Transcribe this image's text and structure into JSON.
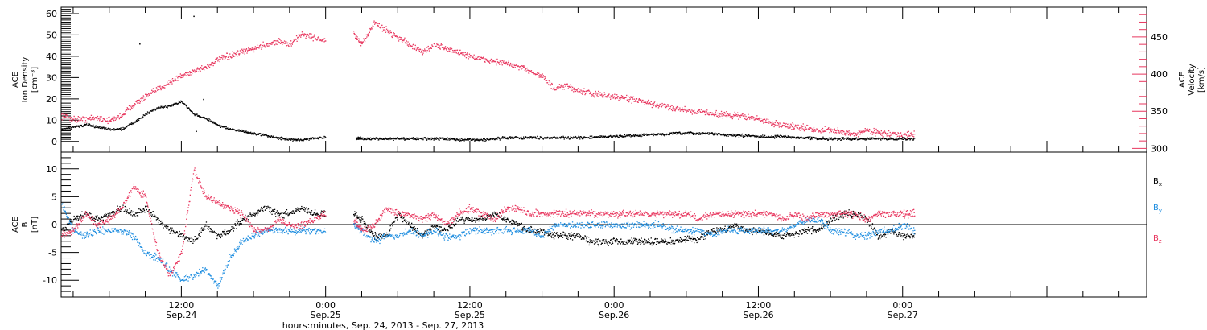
{
  "colors": {
    "black": "#000000",
    "pink": "#e8375f",
    "blue": "#1f8ee0",
    "axis": "#000000"
  },
  "xaxis": {
    "label": "hours:minutes, Sep. 24, 2013 - Sep. 27, 2013",
    "range_hours": [
      2,
      92.3
    ],
    "ticks": [
      {
        "hour": 12,
        "time": "12:00",
        "date": "Sep.24"
      },
      {
        "hour": 24,
        "time": "0:00",
        "date": "Sep.25"
      },
      {
        "hour": 36,
        "time": "12:00",
        "date": "Sep.25"
      },
      {
        "hour": 48,
        "time": "0:00",
        "date": "Sep.26"
      },
      {
        "hour": 60,
        "time": "12:00",
        "date": "Sep.26"
      },
      {
        "hour": 72,
        "time": "0:00",
        "date": "Sep.27"
      }
    ]
  },
  "chart_data": [
    {
      "type": "scatter",
      "panel": "top",
      "ylabel_left": [
        "ACE",
        "Ion Density",
        "[cm⁻³]"
      ],
      "ylabel_right": [
        "ACE",
        "Velocity",
        "[km/s]"
      ],
      "ylim_left": [
        -5,
        63
      ],
      "ylim_right": [
        295,
        490
      ],
      "yticks_left": [
        0,
        10,
        20,
        30,
        40,
        50,
        60
      ],
      "yticks_right": [
        300,
        350,
        400,
        450
      ],
      "series": [
        {
          "axis": "left",
          "color": "black",
          "x": [
            2,
            3,
            4,
            5,
            6,
            7,
            8,
            9,
            10,
            11,
            12,
            13,
            14,
            15,
            16,
            17,
            18,
            19,
            20,
            21,
            22,
            23,
            24,
            26.5,
            27,
            28,
            29,
            30,
            31,
            32,
            33,
            34,
            35,
            36,
            37,
            38,
            39,
            40,
            41,
            42,
            43,
            44,
            45,
            46,
            47,
            48,
            49,
            50,
            51,
            52,
            53,
            54,
            55,
            56,
            57,
            58,
            59,
            60,
            61,
            62,
            63,
            64,
            65,
            66,
            67,
            68,
            69,
            70,
            71,
            72,
            73
          ],
          "y": [
            6,
            7,
            8,
            7,
            6,
            6,
            9,
            13,
            16,
            17,
            19,
            13,
            11,
            8,
            6,
            5,
            4,
            3,
            2,
            1,
            1,
            2,
            2,
            1.5,
            1.5,
            1.5,
            1.5,
            1.5,
            1.5,
            1.5,
            1.5,
            1.5,
            1,
            1,
            1,
            1.5,
            2,
            2,
            2,
            2,
            2,
            2,
            2,
            2,
            2.5,
            2.5,
            3,
            3,
            3.5,
            3.5,
            4,
            4,
            4,
            4,
            3.5,
            3,
            3,
            2.5,
            2.5,
            2.5,
            2,
            2,
            1.5,
            1.5,
            1.5,
            1.5,
            1.5,
            1.5,
            1.5,
            1.5,
            1.5
          ],
          "isolated": [
            [
              13,
              59
            ],
            [
              8.5,
              46
            ],
            [
              13.8,
              20
            ],
            [
              13.2,
              5
            ]
          ]
        },
        {
          "axis": "right",
          "color": "pink",
          "x": [
            2,
            3,
            4,
            5,
            6,
            7,
            8,
            9,
            10,
            11,
            12,
            13,
            14,
            15,
            16,
            17,
            18,
            19,
            20,
            21,
            22,
            23,
            24,
            26.3,
            27,
            28,
            29,
            30,
            31,
            32,
            33,
            34,
            35,
            36,
            37,
            38,
            39,
            40,
            41,
            42,
            43,
            44,
            45,
            46,
            47,
            48,
            49,
            50,
            51,
            52,
            53,
            54,
            55,
            56,
            57,
            58,
            59,
            60,
            61,
            62,
            63,
            64,
            65,
            66,
            67,
            68,
            69,
            70,
            71,
            72,
            73
          ],
          "y": [
            345,
            340,
            340,
            342,
            338,
            345,
            360,
            370,
            380,
            390,
            398,
            405,
            410,
            420,
            425,
            430,
            435,
            440,
            445,
            440,
            455,
            450,
            445,
            455,
            440,
            470,
            460,
            450,
            440,
            430,
            440,
            435,
            430,
            425,
            420,
            418,
            415,
            410,
            405,
            398,
            380,
            385,
            378,
            375,
            372,
            370,
            368,
            365,
            360,
            358,
            355,
            352,
            350,
            348,
            346,
            345,
            343,
            340,
            335,
            332,
            330,
            328,
            325,
            325,
            322,
            320,
            325,
            322,
            320,
            318,
            320
          ]
        }
      ]
    },
    {
      "type": "scatter",
      "panel": "bottom",
      "ylabel_left": [
        "ACE",
        "B",
        "[nT]"
      ],
      "ylim": [
        -13,
        13
      ],
      "yticks": [
        -10,
        -5,
        0,
        5,
        10
      ],
      "zero_line": true,
      "series": [
        {
          "name_main": "B",
          "name_sub": "x",
          "color": "black",
          "x": [
            2,
            3,
            4,
            5,
            6,
            7,
            8,
            9,
            10,
            11,
            12,
            13,
            14,
            15,
            16,
            17,
            18,
            19,
            20,
            21,
            22,
            23,
            24,
            26.3,
            27,
            28,
            29,
            30,
            31,
            32,
            33,
            34,
            35,
            36,
            37,
            38,
            39,
            40,
            41,
            42,
            43,
            44,
            45,
            46,
            47,
            48,
            49,
            50,
            51,
            52,
            53,
            54,
            55,
            56,
            57,
            58,
            59,
            60,
            61,
            62,
            63,
            64,
            65,
            66,
            67,
            68,
            69,
            70,
            71,
            72,
            73
          ],
          "y": [
            -1,
            1,
            2,
            1,
            2,
            3,
            2,
            3,
            1,
            -1,
            -2,
            -3,
            0,
            -2,
            -1,
            1,
            2,
            3,
            2,
            2,
            3,
            2,
            2,
            2,
            1,
            -2,
            -2,
            2,
            0,
            -2,
            0,
            -1,
            1,
            1,
            1,
            2,
            1,
            0,
            -1,
            -1,
            -2,
            -2,
            -2,
            -3,
            -3,
            -3,
            -3,
            -3,
            -3,
            -3,
            -3,
            -2.5,
            -2.5,
            -1,
            -1,
            0,
            -1,
            -1,
            -1.5,
            -2,
            -1.5,
            -1,
            -1,
            1,
            2,
            2,
            1,
            -2,
            -1,
            -2,
            -2
          ]
        },
        {
          "name_main": "B",
          "name_sub": "y",
          "color": "blue",
          "x": [
            2,
            3,
            4,
            5,
            6,
            7,
            8,
            9,
            10,
            11,
            12,
            13,
            14,
            15,
            16,
            17,
            18,
            19,
            20,
            21,
            22,
            23,
            24,
            26.3,
            27,
            28,
            29,
            30,
            31,
            32,
            33,
            34,
            35,
            36,
            37,
            38,
            39,
            40,
            41,
            42,
            43,
            44,
            45,
            46,
            47,
            48,
            49,
            50,
            51,
            52,
            53,
            54,
            55,
            56,
            57,
            58,
            59,
            60,
            61,
            62,
            63,
            64,
            65,
            66,
            67,
            68,
            69,
            70,
            71,
            72,
            73
          ],
          "y": [
            4,
            -1,
            -2,
            -1,
            -1,
            -1,
            -2,
            -5,
            -6,
            -8,
            -10,
            -9,
            -8,
            -11,
            -6,
            -3,
            -2,
            -1,
            -1,
            -1,
            -1,
            -1,
            -1,
            0,
            -1,
            -3,
            -2,
            -2,
            -1,
            -2,
            -1,
            -2,
            -2,
            -1,
            -1,
            -1,
            -1,
            -1,
            -1,
            -2,
            0,
            0,
            0,
            0,
            0,
            0,
            0,
            0,
            0,
            0,
            -1,
            -1,
            -1,
            -2,
            -1,
            -1,
            -1,
            -1,
            -1,
            -1,
            0,
            1,
            1,
            -1,
            -1,
            -2,
            -2,
            -1,
            -1,
            0,
            -1
          ]
        },
        {
          "name_main": "B",
          "name_sub": "z",
          "color": "pink",
          "x": [
            2,
            3,
            4,
            5,
            6,
            7,
            8,
            9,
            10,
            11,
            12,
            13,
            14,
            15,
            16,
            17,
            18,
            19,
            20,
            21,
            22,
            23,
            24,
            26.3,
            27,
            28,
            29,
            30,
            31,
            32,
            33,
            34,
            35,
            36,
            37,
            38,
            39,
            40,
            41,
            42,
            43,
            44,
            45,
            46,
            47,
            48,
            49,
            50,
            51,
            52,
            53,
            54,
            55,
            56,
            57,
            58,
            59,
            60,
            61,
            62,
            63,
            64,
            65,
            66,
            67,
            68,
            69,
            70,
            71,
            72,
            73
          ],
          "y": [
            -2,
            -1,
            2,
            0,
            1,
            3,
            7,
            5,
            -5,
            -9,
            -5,
            10,
            5,
            4,
            3,
            2,
            -1,
            -1,
            1,
            0,
            0,
            1,
            2,
            1,
            -1,
            0,
            3,
            2,
            2,
            1,
            2,
            0,
            2,
            3,
            2,
            1,
            3,
            3,
            2,
            2,
            2,
            2,
            2,
            2,
            2,
            2,
            2,
            2,
            2,
            2,
            2,
            2,
            1,
            2,
            2,
            2,
            2,
            2,
            2,
            1,
            2,
            1,
            2,
            2,
            2,
            2,
            1,
            2,
            2,
            2,
            2
          ]
        }
      ]
    }
  ]
}
